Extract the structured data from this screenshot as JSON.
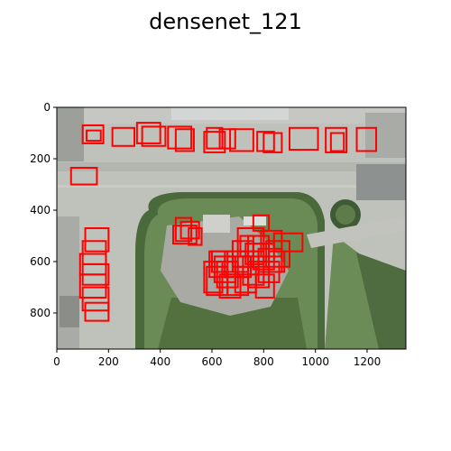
{
  "figure": {
    "title": "densenet_121"
  },
  "axes": {
    "x_ticks": [
      "0",
      "200",
      "400",
      "600",
      "800",
      "1000",
      "1200"
    ],
    "y_ticks": [
      "0",
      "200",
      "400",
      "600",
      "800"
    ],
    "xlim": [
      0,
      1350
    ],
    "ylim": [
      940,
      0
    ]
  },
  "image": {
    "description_colors": {
      "tarmac": "#b9bcb4",
      "grass": "#5e7a4a",
      "dark_grass": "#43573a",
      "roof": "#9fa2a0"
    }
  },
  "detections": {
    "box_color": "#ff0000",
    "boxes": [
      [
        100,
        70,
        180,
        140
      ],
      [
        115,
        90,
        170,
        130
      ],
      [
        215,
        80,
        300,
        150
      ],
      [
        310,
        60,
        400,
        140
      ],
      [
        330,
        75,
        420,
        150
      ],
      [
        430,
        75,
        520,
        160
      ],
      [
        460,
        85,
        530,
        170
      ],
      [
        570,
        95,
        650,
        175
      ],
      [
        580,
        80,
        640,
        160
      ],
      [
        630,
        85,
        690,
        160
      ],
      [
        670,
        85,
        760,
        170
      ],
      [
        775,
        95,
        840,
        170
      ],
      [
        800,
        100,
        870,
        175
      ],
      [
        900,
        80,
        1010,
        165
      ],
      [
        1040,
        80,
        1120,
        175
      ],
      [
        1060,
        100,
        1110,
        170
      ],
      [
        1160,
        80,
        1235,
        170
      ],
      [
        55,
        235,
        155,
        300
      ],
      [
        460,
        430,
        520,
        520
      ],
      [
        450,
        460,
        540,
        530
      ],
      [
        480,
        445,
        550,
        510
      ],
      [
        510,
        470,
        560,
        535
      ],
      [
        590,
        560,
        660,
        660
      ],
      [
        610,
        580,
        690,
        680
      ],
      [
        620,
        600,
        700,
        700
      ],
      [
        650,
        560,
        740,
        660
      ],
      [
        680,
        520,
        760,
        620
      ],
      [
        700,
        560,
        780,
        650
      ],
      [
        720,
        580,
        800,
        690
      ],
      [
        740,
        500,
        820,
        600
      ],
      [
        760,
        530,
        840,
        630
      ],
      [
        780,
        550,
        870,
        640
      ],
      [
        790,
        480,
        870,
        580
      ],
      [
        810,
        520,
        900,
        620
      ],
      [
        840,
        490,
        950,
        560
      ],
      [
        760,
        420,
        820,
        480
      ],
      [
        700,
        470,
        800,
        560
      ],
      [
        580,
        620,
        660,
        730
      ],
      [
        570,
        600,
        640,
        720
      ],
      [
        630,
        650,
        710,
        740
      ],
      [
        660,
        640,
        740,
        730
      ],
      [
        740,
        620,
        820,
        700
      ],
      [
        770,
        650,
        840,
        740
      ],
      [
        600,
        560,
        680,
        640
      ],
      [
        650,
        580,
        750,
        660
      ],
      [
        710,
        500,
        760,
        580
      ],
      [
        730,
        530,
        800,
        610
      ],
      [
        820,
        560,
        880,
        640
      ],
      [
        780,
        600,
        860,
        680
      ],
      [
        690,
        620,
        770,
        720
      ],
      [
        110,
        470,
        200,
        560
      ],
      [
        100,
        520,
        190,
        610
      ],
      [
        90,
        570,
        190,
        650
      ],
      [
        100,
        610,
        200,
        690
      ],
      [
        90,
        650,
        190,
        740
      ],
      [
        100,
        700,
        200,
        790
      ],
      [
        110,
        760,
        200,
        830
      ]
    ]
  }
}
